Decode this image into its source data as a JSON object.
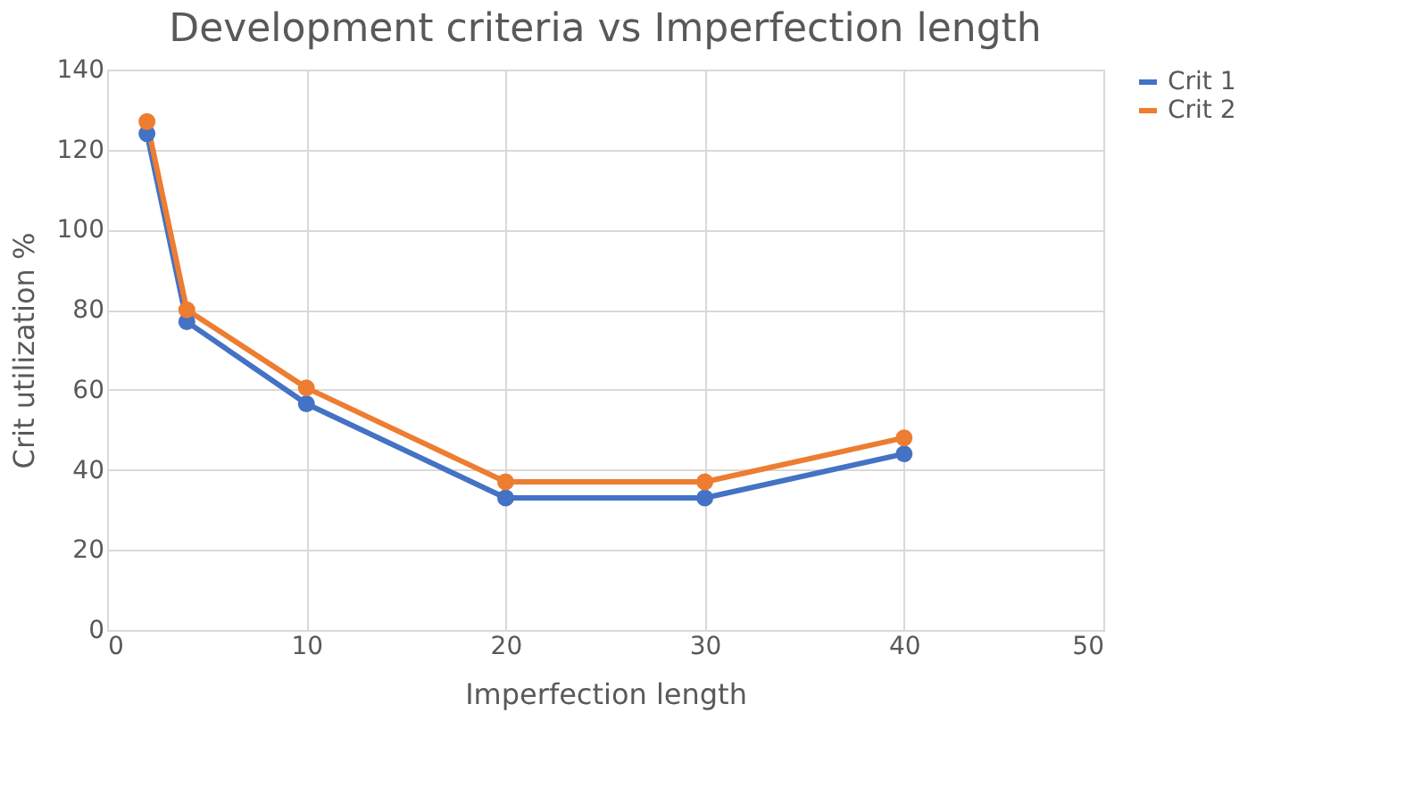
{
  "chart_data": {
    "type": "line",
    "title": "Development criteria vs Imperfection length",
    "xlabel": "Imperfection length",
    "ylabel": "Crit utilization %",
    "x": [
      2,
      4,
      10,
      20,
      30,
      40
    ],
    "series": [
      {
        "name": "Crit 1",
        "color": "#4472c4",
        "values": [
          124,
          77,
          56.5,
          33,
          33,
          44
        ]
      },
      {
        "name": "Crit 2",
        "color": "#ed7d31",
        "values": [
          127,
          80,
          60.5,
          37,
          37,
          48
        ]
      }
    ],
    "xlim": [
      0,
      50
    ],
    "xticks": [
      0,
      10,
      20,
      30,
      40,
      50
    ],
    "ylim": [
      0,
      140
    ],
    "yticks": [
      0,
      20,
      40,
      60,
      80,
      100,
      120,
      140
    ],
    "grid": true,
    "legend": "right",
    "marker": "circle",
    "line_style": "solid"
  }
}
